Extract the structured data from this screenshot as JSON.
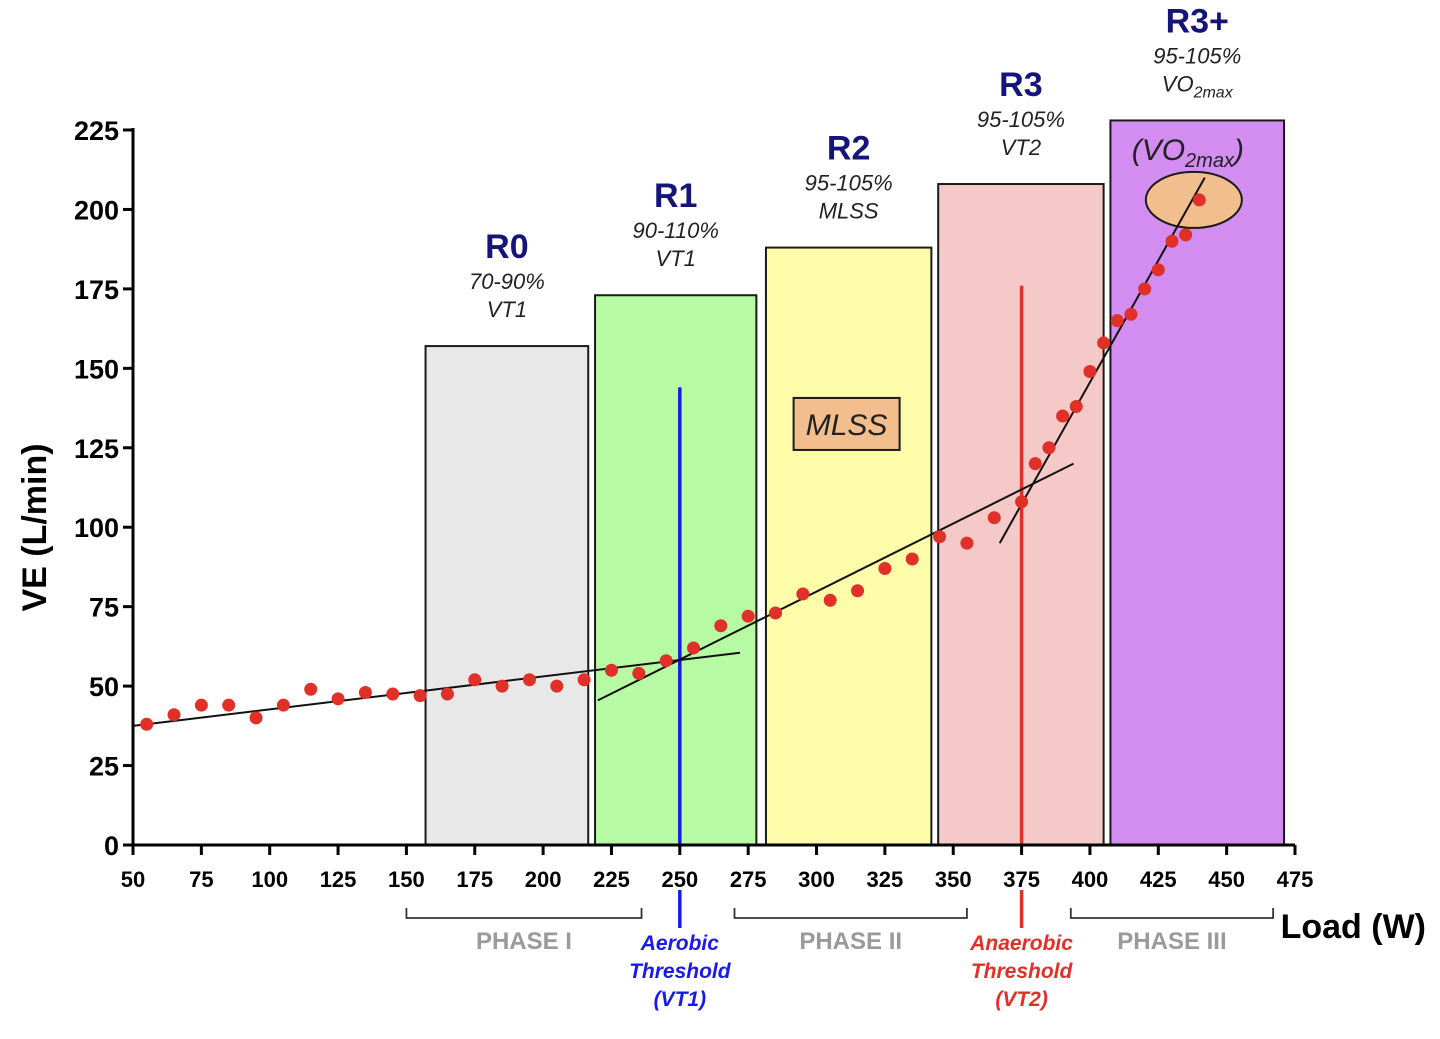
{
  "chart_data": {
    "type": "scatter",
    "xlabel": "Load (W)",
    "ylabel": "VE (L/min)",
    "xlim": [
      50,
      475
    ],
    "ylim": [
      0,
      225
    ],
    "x_ticks": [
      "50",
      "75",
      "100",
      "125",
      "150",
      "175",
      "200",
      "225",
      "250",
      "275",
      "300",
      "325",
      "350",
      "375",
      "400",
      "425",
      "450",
      "475"
    ],
    "y_ticks": [
      "0",
      "25",
      "50",
      "75",
      "100",
      "125",
      "150",
      "175",
      "200",
      "225"
    ],
    "grid": false,
    "series": [
      {
        "marker_color": "#e03028",
        "points": [
          [
            55,
            38
          ],
          [
            65,
            41
          ],
          [
            75,
            44
          ],
          [
            85,
            44
          ],
          [
            95,
            40
          ],
          [
            105,
            44
          ],
          [
            115,
            49
          ],
          [
            125,
            46
          ],
          [
            135,
            48
          ],
          [
            145,
            47.5
          ],
          [
            155,
            47
          ],
          [
            165,
            47.5
          ],
          [
            175,
            52
          ],
          [
            185,
            50
          ],
          [
            195,
            52
          ],
          [
            205,
            50
          ],
          [
            215,
            52
          ],
          [
            225,
            55
          ],
          [
            235,
            54
          ],
          [
            245,
            58
          ],
          [
            255,
            62
          ],
          [
            265,
            69
          ],
          [
            275,
            72
          ],
          [
            285,
            73
          ],
          [
            295,
            79
          ],
          [
            305,
            77
          ],
          [
            315,
            80
          ],
          [
            325,
            87
          ],
          [
            335,
            90
          ],
          [
            345,
            97
          ],
          [
            355,
            95
          ],
          [
            365,
            103
          ],
          [
            375,
            108
          ],
          [
            380,
            120
          ],
          [
            385,
            125
          ],
          [
            390,
            135
          ],
          [
            395,
            138
          ],
          [
            400,
            149
          ],
          [
            405,
            158
          ],
          [
            410,
            165
          ],
          [
            415,
            167
          ],
          [
            420,
            175
          ],
          [
            425,
            181
          ],
          [
            430,
            190
          ],
          [
            435,
            192
          ],
          [
            440,
            203
          ]
        ]
      }
    ],
    "trend_lines": [
      {
        "from": [
          50,
          37.5
        ],
        "to": [
          272,
          60.5
        ]
      },
      {
        "from": [
          220,
          45.5
        ],
        "to": [
          394,
          120
        ]
      },
      {
        "from": [
          367,
          95
        ],
        "to": [
          442,
          210
        ]
      }
    ],
    "zones": [
      {
        "name": "R0",
        "sub1": "70-90%",
        "sub2": "VT1",
        "x_start": 157,
        "x_end": 216.5,
        "top": 157,
        "color": "#e8e8e8"
      },
      {
        "name": "R1",
        "sub1": "90-110%",
        "sub2": "VT1",
        "x_start": 219,
        "x_end": 278,
        "top": 173,
        "color": "#b6fba4"
      },
      {
        "name": "R2",
        "sub1": "95-105%",
        "sub2": "MLSS",
        "x_start": 281.5,
        "x_end": 342,
        "top": 188,
        "color": "#fdfda9"
      },
      {
        "name": "R3",
        "sub1": "95-105%",
        "sub2": "VT2",
        "x_start": 344.5,
        "x_end": 405,
        "top": 208,
        "color": "#f5c9c7"
      },
      {
        "name": "R3+",
        "sub1": "95-105%",
        "sub2_base": "VO",
        "sub2_sub": "2max",
        "x_start": 407.5,
        "x_end": 471,
        "top": 228,
        "color": "#d38cf0"
      }
    ],
    "thresholds": [
      {
        "x": 250,
        "top": 144,
        "color": "#1a1ae6",
        "lines": [
          "Aerobic",
          "Threshold",
          "(VT1)"
        ]
      },
      {
        "x": 375,
        "top": 176,
        "color": "#e03028",
        "lines": [
          "Anaerobic",
          "Threshold",
          "(VT2)"
        ]
      }
    ],
    "phases": [
      {
        "label": "PHASE I",
        "x_start": 150,
        "x_end": 236
      },
      {
        "label": "PHASE II",
        "x_start": 270,
        "x_end": 355
      },
      {
        "label": "PHASE III",
        "x_start": 393,
        "x_end": 467
      }
    ],
    "annotations": {
      "mlss_box": {
        "text": "MLSS",
        "x": 311,
        "y": 132.5,
        "color": "#f2be8d"
      },
      "vo2max_label": {
        "base": "(VO",
        "sub": "2max",
        "close": ")",
        "x": 438,
        "y": 218
      },
      "vo2max_ellipse": {
        "cx": 438,
        "cy": 203,
        "color": "#f2be8d"
      }
    }
  }
}
